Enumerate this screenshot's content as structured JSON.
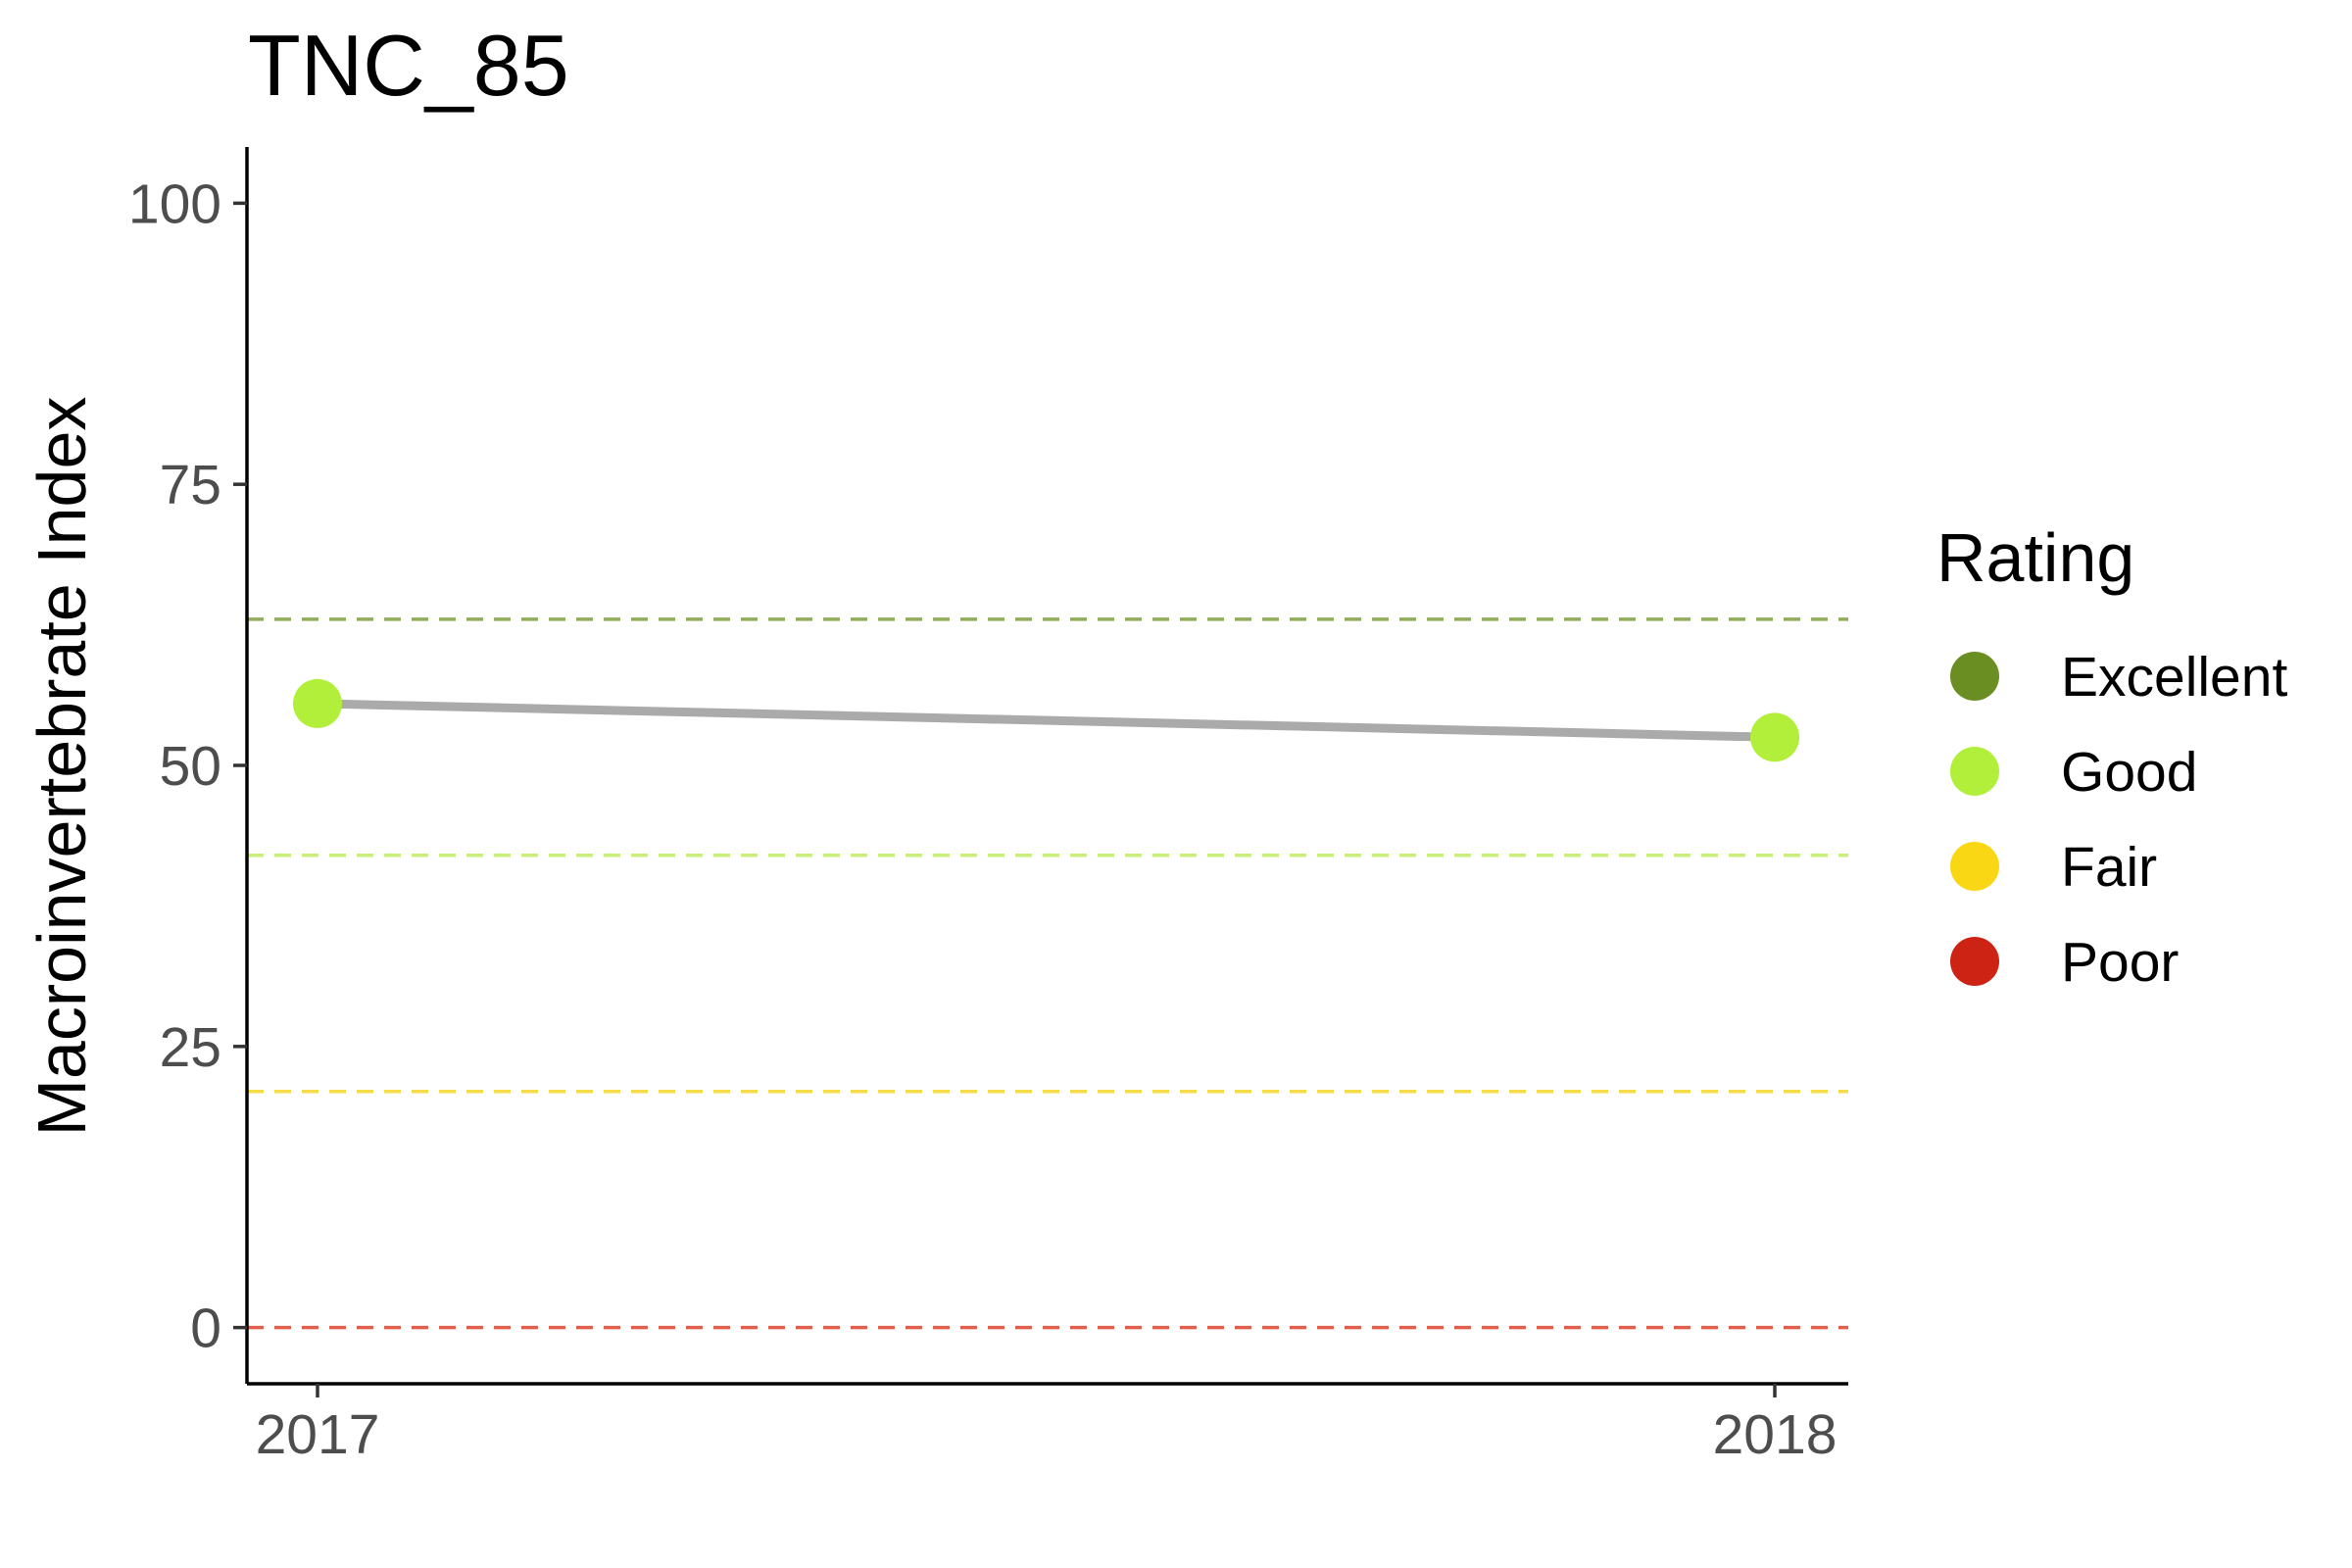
{
  "chart_data": {
    "type": "line",
    "title": "TNC_85",
    "xlabel": "",
    "ylabel": "Macroinvertebrate Index",
    "categories": [
      "2017",
      "2018"
    ],
    "series": [
      {
        "values": [
          55.5,
          52.5
        ],
        "ratings": [
          "Good",
          "Good"
        ]
      }
    ],
    "ylim": [
      -5,
      105
    ],
    "yticks": [
      0,
      25,
      50,
      75,
      100
    ],
    "reference_lines": [
      {
        "value": 63,
        "rating": "Excellent",
        "color": "#8fad5a"
      },
      {
        "value": 42,
        "rating": "Good",
        "color": "#c9ef7b"
      },
      {
        "value": 21,
        "rating": "Fair",
        "color": "#f5dc4a"
      },
      {
        "value": 0,
        "rating": "Poor",
        "color": "#e0604d"
      }
    ],
    "line_color": "#aaaaaa",
    "grid": false,
    "legend": {
      "title": "Rating",
      "position": "right",
      "entries": [
        {
          "label": "Excellent",
          "color": "#6b8e23"
        },
        {
          "label": "Good",
          "color": "#b2ef3a"
        },
        {
          "label": "Fair",
          "color": "#f9d714"
        },
        {
          "label": "Poor",
          "color": "#cc2314"
        }
      ]
    }
  }
}
